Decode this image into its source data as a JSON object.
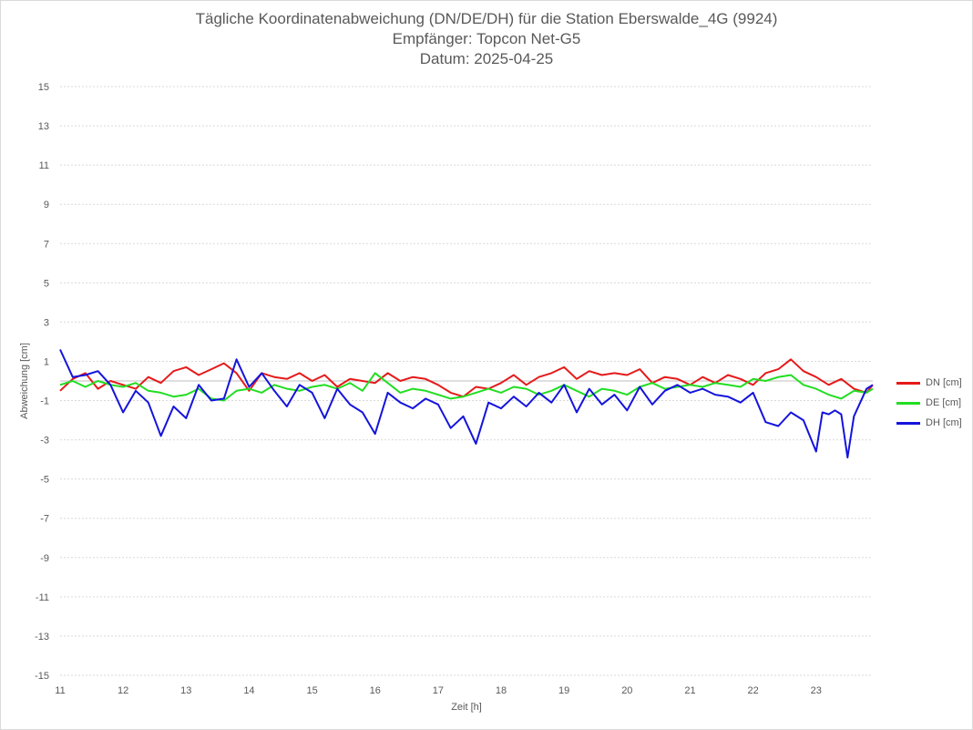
{
  "chart_data": {
    "type": "line",
    "title": "Tägliche Koordinatenabweichung (DN/DE/DH) für die Station Eberswalde_4G (9924)",
    "subtitle1": "Empfänger: Topcon Net-G5",
    "subtitle2": "Datum: 2025-04-25",
    "xlabel": "Zeit [h]",
    "ylabel": "Abweichung [cm]",
    "xlim": [
      11,
      23.9
    ],
    "ylim": [
      -15,
      15
    ],
    "xticks": [
      11,
      12,
      13,
      14,
      15,
      16,
      17,
      18,
      19,
      20,
      21,
      22,
      23
    ],
    "yticks": [
      15,
      13,
      11,
      9,
      7,
      5,
      3,
      1,
      -1,
      -3,
      -5,
      -7,
      -9,
      -11,
      -13,
      -15
    ],
    "grid": true,
    "legend_position": "right",
    "series": [
      {
        "name": "DN [cm]",
        "color": "#e51a1a",
        "x": [
          11.0,
          11.2,
          11.4,
          11.6,
          11.8,
          12.0,
          12.2,
          12.4,
          12.6,
          12.8,
          13.0,
          13.2,
          13.4,
          13.6,
          13.8,
          14.0,
          14.2,
          14.4,
          14.6,
          14.8,
          15.0,
          15.2,
          15.4,
          15.6,
          15.8,
          16.0,
          16.2,
          16.4,
          16.6,
          16.8,
          17.0,
          17.2,
          17.4,
          17.6,
          17.8,
          18.0,
          18.2,
          18.4,
          18.6,
          18.8,
          19.0,
          19.2,
          19.4,
          19.6,
          19.8,
          20.0,
          20.2,
          20.4,
          20.6,
          20.8,
          21.0,
          21.2,
          21.4,
          21.6,
          21.8,
          22.0,
          22.2,
          22.4,
          22.6,
          22.8,
          23.0,
          23.2,
          23.4,
          23.6,
          23.8,
          23.9
        ],
        "values": [
          -0.5,
          0.1,
          0.4,
          -0.4,
          0.0,
          -0.2,
          -0.4,
          0.2,
          -0.1,
          0.5,
          0.7,
          0.3,
          0.6,
          0.9,
          0.4,
          -0.5,
          0.4,
          0.2,
          0.1,
          0.4,
          0.0,
          0.3,
          -0.3,
          0.1,
          0.0,
          -0.1,
          0.4,
          0.0,
          0.2,
          0.1,
          -0.2,
          -0.6,
          -0.8,
          -0.3,
          -0.4,
          -0.1,
          0.3,
          -0.2,
          0.2,
          0.4,
          0.7,
          0.1,
          0.5,
          0.3,
          0.4,
          0.3,
          0.6,
          -0.1,
          0.2,
          0.1,
          -0.2,
          0.2,
          -0.1,
          0.3,
          0.1,
          -0.2,
          0.4,
          0.6,
          1.1,
          0.5,
          0.2,
          -0.2,
          0.1,
          -0.4,
          -0.6,
          -0.2
        ]
      },
      {
        "name": "DE [cm]",
        "color": "#22dd22",
        "x": [
          11.0,
          11.2,
          11.4,
          11.6,
          11.8,
          12.0,
          12.2,
          12.4,
          12.6,
          12.8,
          13.0,
          13.2,
          13.4,
          13.6,
          13.8,
          14.0,
          14.2,
          14.4,
          14.6,
          14.8,
          15.0,
          15.2,
          15.4,
          15.6,
          15.8,
          16.0,
          16.2,
          16.4,
          16.6,
          16.8,
          17.0,
          17.2,
          17.4,
          17.6,
          17.8,
          18.0,
          18.2,
          18.4,
          18.6,
          18.8,
          19.0,
          19.2,
          19.4,
          19.6,
          19.8,
          20.0,
          20.2,
          20.4,
          20.6,
          20.8,
          21.0,
          21.2,
          21.4,
          21.6,
          21.8,
          22.0,
          22.2,
          22.4,
          22.6,
          22.8,
          23.0,
          23.2,
          23.4,
          23.6,
          23.8,
          23.9
        ],
        "values": [
          -0.2,
          0.0,
          -0.3,
          0.0,
          -0.2,
          -0.3,
          -0.1,
          -0.5,
          -0.6,
          -0.8,
          -0.7,
          -0.4,
          -0.9,
          -1.0,
          -0.5,
          -0.4,
          -0.6,
          -0.2,
          -0.4,
          -0.5,
          -0.3,
          -0.2,
          -0.4,
          -0.1,
          -0.5,
          0.4,
          -0.1,
          -0.6,
          -0.4,
          -0.5,
          -0.7,
          -0.9,
          -0.8,
          -0.6,
          -0.4,
          -0.6,
          -0.3,
          -0.4,
          -0.7,
          -0.5,
          -0.2,
          -0.5,
          -0.8,
          -0.4,
          -0.5,
          -0.7,
          -0.3,
          -0.1,
          -0.4,
          -0.3,
          -0.2,
          -0.3,
          -0.1,
          -0.2,
          -0.3,
          0.1,
          0.0,
          0.2,
          0.3,
          -0.2,
          -0.4,
          -0.7,
          -0.9,
          -0.5,
          -0.6,
          -0.4
        ]
      },
      {
        "name": "DH [cm]",
        "color": "#1414dc",
        "x": [
          11.0,
          11.2,
          11.4,
          11.6,
          11.8,
          12.0,
          12.2,
          12.4,
          12.6,
          12.8,
          13.0,
          13.2,
          13.4,
          13.6,
          13.8,
          14.0,
          14.2,
          14.4,
          14.6,
          14.8,
          15.0,
          15.2,
          15.4,
          15.6,
          15.8,
          16.0,
          16.2,
          16.4,
          16.6,
          16.8,
          17.0,
          17.2,
          17.4,
          17.6,
          17.8,
          18.0,
          18.2,
          18.4,
          18.6,
          18.8,
          19.0,
          19.2,
          19.4,
          19.6,
          19.8,
          20.0,
          20.2,
          20.4,
          20.6,
          20.8,
          21.0,
          21.2,
          21.4,
          21.6,
          21.8,
          22.0,
          22.2,
          22.4,
          22.6,
          22.8,
          23.0,
          23.1,
          23.2,
          23.3,
          23.4,
          23.5,
          23.6,
          23.8,
          23.9
        ],
        "values": [
          1.6,
          0.2,
          0.3,
          0.5,
          -0.2,
          -1.6,
          -0.5,
          -1.1,
          -2.8,
          -1.3,
          -1.9,
          -0.2,
          -1.0,
          -0.9,
          1.1,
          -0.3,
          0.4,
          -0.5,
          -1.3,
          -0.2,
          -0.6,
          -1.9,
          -0.4,
          -1.2,
          -1.6,
          -2.7,
          -0.6,
          -1.1,
          -1.4,
          -0.9,
          -1.2,
          -2.4,
          -1.8,
          -3.2,
          -1.1,
          -1.4,
          -0.8,
          -1.3,
          -0.6,
          -1.1,
          -0.2,
          -1.6,
          -0.4,
          -1.2,
          -0.7,
          -1.5,
          -0.3,
          -1.2,
          -0.5,
          -0.2,
          -0.6,
          -0.4,
          -0.7,
          -0.8,
          -1.1,
          -0.6,
          -2.1,
          -2.3,
          -1.6,
          -2.0,
          -3.6,
          -1.6,
          -1.7,
          -1.5,
          -1.7,
          -3.9,
          -1.8,
          -0.4,
          -0.2
        ]
      }
    ]
  }
}
